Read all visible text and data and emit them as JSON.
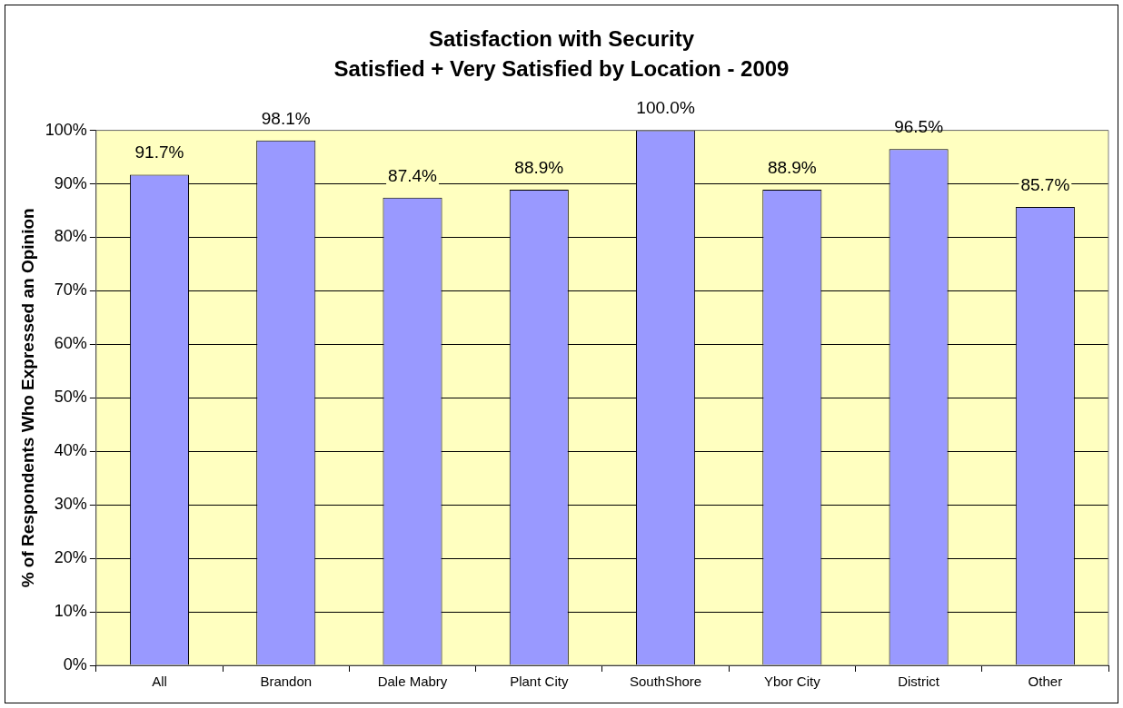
{
  "chart_data": {
    "type": "bar",
    "title": "Satisfaction with Security",
    "subtitle": "Satisfied + Very Satisfied by Location - 2009",
    "ylabel": "% of Respondents Who Expressed an Opinion",
    "categories": [
      "All",
      "Brandon",
      "Dale Mabry",
      "Plant City",
      "SouthShore",
      "Ybor City",
      "District",
      "Other"
    ],
    "values": [
      91.7,
      98.1,
      87.4,
      88.9,
      100.0,
      88.9,
      96.5,
      85.7
    ],
    "value_labels": [
      "91.7%",
      "98.1%",
      "87.4%",
      "88.9%",
      "100.0%",
      "88.9%",
      "96.5%",
      "85.7%"
    ],
    "color": "#9999ff",
    "ylim": [
      0,
      100
    ],
    "yticks": [
      {
        "value": 0,
        "label": "0%"
      },
      {
        "value": 10,
        "label": "10%"
      },
      {
        "value": 20,
        "label": "20%"
      },
      {
        "value": 30,
        "label": "30%"
      },
      {
        "value": 40,
        "label": "40%"
      },
      {
        "value": 50,
        "label": "50%"
      },
      {
        "value": 60,
        "label": "60%"
      },
      {
        "value": 70,
        "label": "70%"
      },
      {
        "value": 80,
        "label": "80%"
      },
      {
        "value": 90,
        "label": "90%"
      },
      {
        "value": 100,
        "label": "100%"
      }
    ],
    "grid": "y",
    "legend": false
  }
}
